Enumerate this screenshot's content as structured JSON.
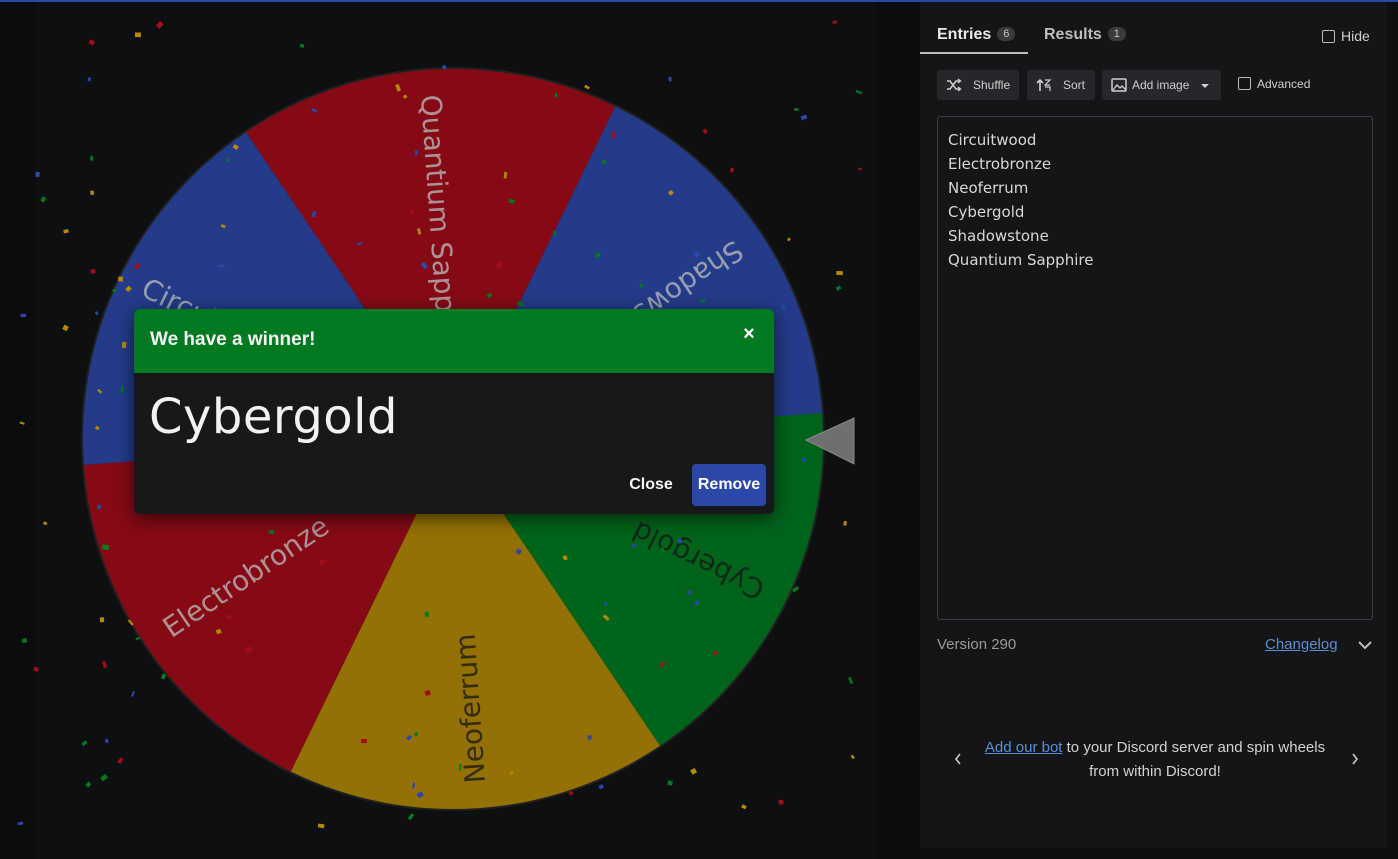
{
  "wheel": {
    "segments": [
      {
        "label": "Shadowstone",
        "color": "#2b48a8"
      },
      {
        "label": "Cybergold",
        "color": "#027a22"
      },
      {
        "label": "Neoferrum",
        "color": "#b58a06"
      },
      {
        "label": "Electrobronze",
        "color": "#a30d1b"
      },
      {
        "label": "Circuitwood",
        "color": "#2b48a8"
      },
      {
        "label": "Quantium Sapphire",
        "color": "#a30d1b"
      }
    ]
  },
  "modal": {
    "title": "We have a winner!",
    "close_x": "×",
    "winner": "Cybergold",
    "close_label": "Close",
    "remove_label": "Remove"
  },
  "panel": {
    "tabs": [
      {
        "label": "Entries",
        "count": "6"
      },
      {
        "label": "Results",
        "count": "1"
      }
    ],
    "hide_label": "Hide",
    "toolbar": {
      "shuffle": "Shuffle",
      "sort": "Sort",
      "add_image": "Add image",
      "advanced": "Advanced"
    },
    "entries": [
      "Circuitwood",
      "Electrobronze",
      "Neoferrum",
      "Cybergold",
      "Shadowstone",
      "Quantium Sapphire"
    ],
    "version": "Version 290",
    "changelog": "Changelog",
    "promo_link": "Add our bot",
    "promo_text": " to your Discord server and spin wheels from within Discord!"
  }
}
